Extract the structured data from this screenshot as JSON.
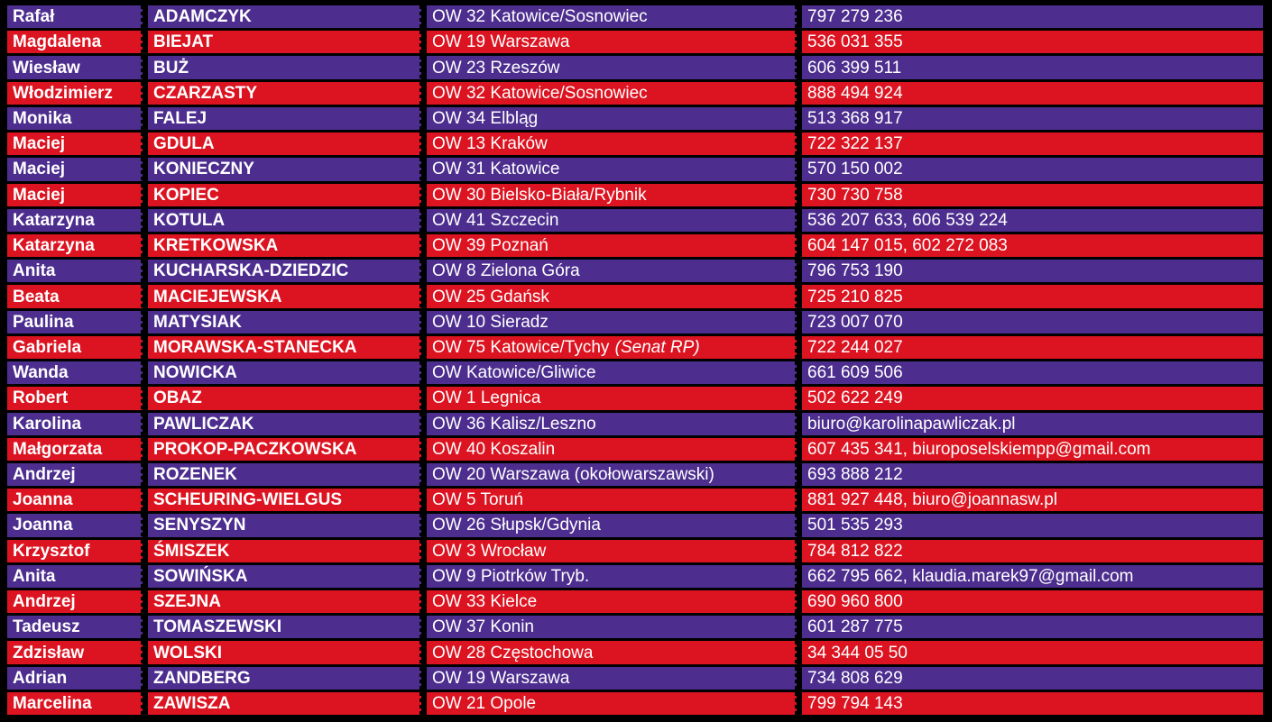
{
  "table": {
    "description": "Contact list table, alternating purple/red rows",
    "colors": {
      "purple": "#4D2E8F",
      "red": "#DC1320",
      "text": "#FFFFFF",
      "grid": "#000000"
    },
    "columns": [
      "first_name",
      "last_name",
      "district",
      "contact"
    ],
    "rows": [
      {
        "first": "Rafał",
        "last": "ADAMCZYK",
        "district": "OW 32 Katowice/Sosnowiec",
        "note": "",
        "contact": "797 279 236"
      },
      {
        "first": "Magdalena",
        "last": "BIEJAT",
        "district": "OW 19 Warszawa",
        "note": "",
        "contact": "536 031 355"
      },
      {
        "first": "Wiesław",
        "last": "BUŻ",
        "district": "OW 23 Rzeszów",
        "note": "",
        "contact": "606 399 511"
      },
      {
        "first": "Włodzimierz",
        "last": "CZARZASTY",
        "district": "OW 32 Katowice/Sosnowiec",
        "note": "",
        "contact": "888 494 924"
      },
      {
        "first": "Monika",
        "last": "FALEJ",
        "district": "OW 34 Elbląg",
        "note": "",
        "contact": "513 368 917"
      },
      {
        "first": "Maciej",
        "last": "GDULA",
        "district": "OW 13 Kraków",
        "note": "",
        "contact": "722 322 137"
      },
      {
        "first": "Maciej",
        "last": "KONIECZNY",
        "district": "OW 31 Katowice",
        "note": "",
        "contact": "570 150 002"
      },
      {
        "first": "Maciej",
        "last": "KOPIEC",
        "district": "OW 30 Bielsko-Biała/Rybnik",
        "note": "",
        "contact": "730 730 758"
      },
      {
        "first": "Katarzyna",
        "last": "KOTULA",
        "district": "OW 41 Szczecin",
        "note": "",
        "contact": "536 207 633, 606 539 224"
      },
      {
        "first": "Katarzyna",
        "last": "KRETKOWSKA",
        "district": "OW 39 Poznań",
        "note": "",
        "contact": "604 147 015, 602 272 083"
      },
      {
        "first": "Anita",
        "last": "KUCHARSKA-DZIEDZIC",
        "district": "OW 8 Zielona Góra",
        "note": "",
        "contact": "796 753 190"
      },
      {
        "first": "Beata",
        "last": "MACIEJEWSKA",
        "district": "OW 25 Gdańsk",
        "note": "",
        "contact": "725 210 825"
      },
      {
        "first": "Paulina",
        "last": "MATYSIAK",
        "district": "OW 10 Sieradz",
        "note": "",
        "contact": "723 007 070"
      },
      {
        "first": "Gabriela",
        "last": "MORAWSKA-STANECKA",
        "district": "OW 75 Katowice/Tychy",
        "note": "(Senat RP)",
        "contact": "722 244 027"
      },
      {
        "first": "Wanda",
        "last": "NOWICKA",
        "district": "OW Katowice/Gliwice",
        "note": "",
        "contact": "661 609 506"
      },
      {
        "first": "Robert",
        "last": "OBAZ",
        "district": "OW 1 Legnica",
        "note": "",
        "contact": "502 622 249"
      },
      {
        "first": "Karolina",
        "last": "PAWLICZAK",
        "district": "OW 36 Kalisz/Leszno",
        "note": "",
        "contact": "biuro@karolinapawliczak.pl"
      },
      {
        "first": "Małgorzata",
        "last": "PROKOP-PACZKOWSKA",
        "district": "OW 40 Koszalin",
        "note": "",
        "contact": "607 435 341, biuroposelskiempp@gmail.com"
      },
      {
        "first": "Andrzej",
        "last": "ROZENEK",
        "district": "OW 20 Warszawa (okołowarszawski)",
        "note": "",
        "contact": "693 888 212"
      },
      {
        "first": "Joanna",
        "last": "SCHEURING-WIELGUS",
        "district": "OW 5 Toruń",
        "note": "",
        "contact": "881 927 448, biuro@joannasw.pl"
      },
      {
        "first": "Joanna",
        "last": "SENYSZYN",
        "district": "OW 26 Słupsk/Gdynia",
        "note": "",
        "contact": "501 535 293"
      },
      {
        "first": "Krzysztof",
        "last": "ŚMISZEK",
        "district": "OW 3 Wrocław",
        "note": "",
        "contact": "784 812 822"
      },
      {
        "first": "Anita",
        "last": "SOWIŃSKA",
        "district": "OW 9 Piotrków Tryb.",
        "note": "",
        "contact": "662 795 662, klaudia.marek97@gmail.com"
      },
      {
        "first": "Andrzej",
        "last": "SZEJNA",
        "district": "OW 33 Kielce",
        "note": "",
        "contact": "690 960 800"
      },
      {
        "first": "Tadeusz",
        "last": "TOMASZEWSKI",
        "district": "OW 37 Konin",
        "note": "",
        "contact": "601 287 775"
      },
      {
        "first": "Zdzisław",
        "last": "WOLSKI",
        "district": "OW 28 Częstochowa",
        "note": "",
        "contact": "34 344 05 50"
      },
      {
        "first": "Adrian",
        "last": "ZANDBERG",
        "district": "OW 19 Warszawa",
        "note": "",
        "contact": "734 808 629"
      },
      {
        "first": "Marcelina",
        "last": "ZAWISZA",
        "district": "OW 21 Opole",
        "note": "",
        "contact": "799 794 143"
      }
    ]
  }
}
